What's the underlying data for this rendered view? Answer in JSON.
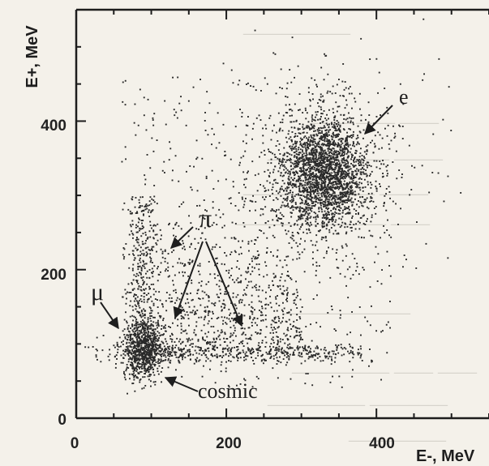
{
  "chart_data": {
    "type": "scatter",
    "title": "",
    "xlabel": "E-, MeV",
    "ylabel": "E+, MeV",
    "xlim": [
      0,
      550
    ],
    "ylim": [
      0,
      550
    ],
    "xticks": [
      0,
      200,
      400
    ],
    "yticks": [
      0,
      200,
      400
    ],
    "grid": false,
    "legend": "none",
    "point_color": "#2a2a2a",
    "clusters": [
      {
        "label": "e",
        "center": [
          330,
          330
        ],
        "spread": [
          30,
          38
        ],
        "approx_points": 2200
      },
      {
        "label": "μ",
        "center": [
          88,
          92
        ],
        "spread": [
          12,
          20
        ],
        "approx_points": 700
      },
      {
        "label": "cosmic",
        "band_x": [
          90,
          380
        ],
        "band_y": 88,
        "approx_points": 450
      },
      {
        "label": "π",
        "band_x": [
          80,
          300
        ],
        "band_y": [
          100,
          300
        ],
        "approx_points": 700
      }
    ],
    "annotations": [
      {
        "text": "e",
        "points_to": [
          300,
          335
        ]
      },
      {
        "text": "π",
        "points_to": [
          [
            120,
            245
          ],
          [
            125,
            120
          ],
          [
            215,
            120
          ]
        ]
      },
      {
        "text": "μ",
        "points_to": [
          60,
          105
        ]
      },
      {
        "text": "cosmic",
        "points_to": [
          115,
          55
        ]
      }
    ]
  }
}
